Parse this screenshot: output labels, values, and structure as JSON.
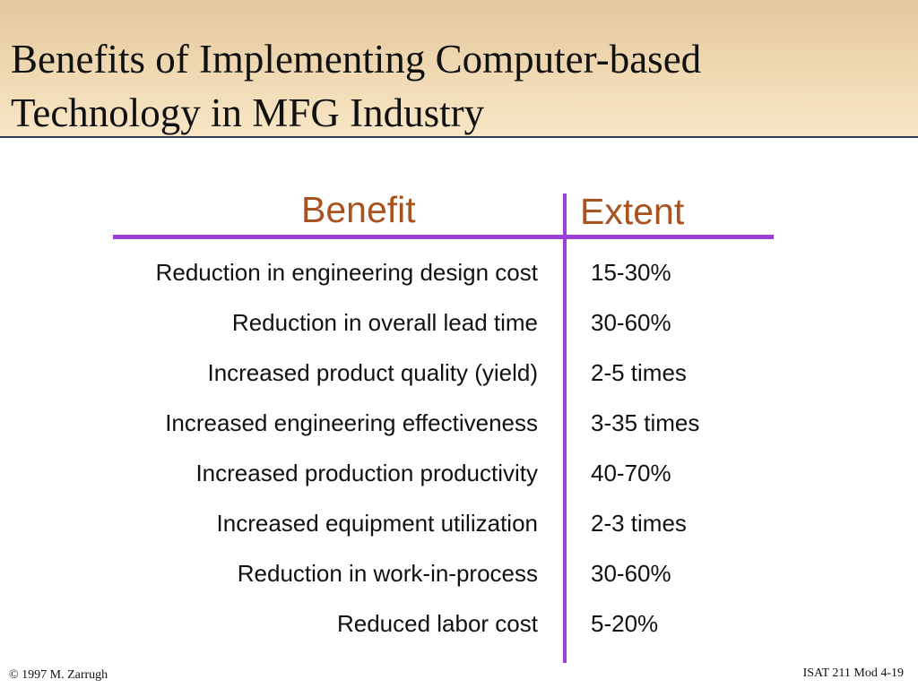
{
  "slide": {
    "title_lines": [
      "Benefits of Implementing Computer-based",
      "Technology in MFG Industry"
    ],
    "headers": {
      "benefit": "Benefit",
      "extent": "Extent"
    },
    "benefits": [
      "Reduction in engineering design cost",
      "Reduction in overall lead time",
      "Increased product quality (yield)",
      "Increased engineering effectiveness",
      "Increased production productivity",
      "Increased equipment utilization",
      "Reduction in work-in-process",
      "Reduced labor cost"
    ],
    "extents": [
      "15-30%",
      "30-60%",
      "2-5 times",
      "3-35 times",
      "40-70%",
      "2-3 times",
      "30-60%",
      "5-20%"
    ],
    "footer": {
      "copyright": "© 1997 M. Zarrugh",
      "course": "ISAT 211 Mod 4-19"
    },
    "colors": {
      "header_text": "#a9521f",
      "rule": "#9b3fd6",
      "title_band": "#f0d9b3"
    }
  }
}
